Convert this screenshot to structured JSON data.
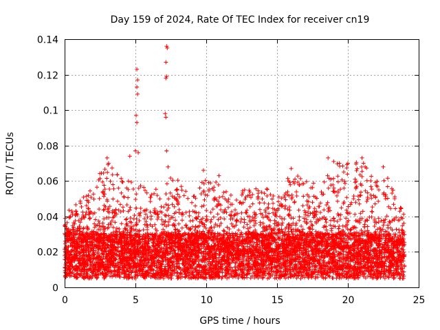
{
  "chart_data": {
    "type": "scatter",
    "title": "Day 159 of 2024, Rate Of TEC Index for receiver cn19",
    "xlabel": "GPS time / hours",
    "ylabel": "ROTI / TECUs",
    "xlim": [
      0,
      25
    ],
    "ylim": [
      0,
      0.14
    ],
    "xticks": [
      0,
      5,
      10,
      15,
      20,
      25
    ],
    "xtick_labels": [
      "0",
      "5",
      "10",
      "15",
      "20",
      "25"
    ],
    "yticks": [
      0,
      0.02,
      0.04,
      0.06,
      0.08,
      0.1,
      0.12,
      0.14
    ],
    "ytick_labels": [
      "0",
      "0.02",
      "0.04",
      "0.06",
      "0.08",
      "0.1",
      "0.12",
      "0.14"
    ],
    "grid": true,
    "marker": "plus",
    "color": "#ff0000",
    "data_range_hours": [
      0,
      24
    ],
    "baseline_band": [
      0.005,
      0.03
    ],
    "notable_points": [
      {
        "x": 5.1,
        "y": 0.123
      },
      {
        "x": 5.15,
        "y": 0.117
      },
      {
        "x": 5.1,
        "y": 0.113
      },
      {
        "x": 5.15,
        "y": 0.109
      },
      {
        "x": 5.05,
        "y": 0.097
      },
      {
        "x": 5.1,
        "y": 0.093
      },
      {
        "x": 5.0,
        "y": 0.077
      },
      {
        "x": 5.2,
        "y": 0.076
      },
      {
        "x": 4.6,
        "y": 0.074
      },
      {
        "x": 7.2,
        "y": 0.136
      },
      {
        "x": 7.25,
        "y": 0.135
      },
      {
        "x": 7.15,
        "y": 0.127
      },
      {
        "x": 7.2,
        "y": 0.119
      },
      {
        "x": 7.15,
        "y": 0.118
      },
      {
        "x": 7.1,
        "y": 0.098
      },
      {
        "x": 7.15,
        "y": 0.096
      },
      {
        "x": 7.2,
        "y": 0.077
      },
      {
        "x": 7.3,
        "y": 0.068
      },
      {
        "x": 3.0,
        "y": 0.073
      },
      {
        "x": 3.1,
        "y": 0.07
      },
      {
        "x": 9.8,
        "y": 0.066
      },
      {
        "x": 10.9,
        "y": 0.063
      },
      {
        "x": 16.0,
        "y": 0.067
      },
      {
        "x": 18.6,
        "y": 0.073
      },
      {
        "x": 19.0,
        "y": 0.071
      },
      {
        "x": 19.4,
        "y": 0.07
      },
      {
        "x": 20.0,
        "y": 0.07
      },
      {
        "x": 21.0,
        "y": 0.073
      },
      {
        "x": 21.1,
        "y": 0.07
      },
      {
        "x": 22.5,
        "y": 0.068
      }
    ],
    "peak_envelope": {
      "hours": [
        0,
        1,
        2,
        3,
        4,
        5,
        6,
        7,
        8,
        9,
        10,
        11,
        12,
        13,
        14,
        15,
        16,
        17,
        18,
        19,
        20,
        21,
        22,
        23,
        24
      ],
      "roti": [
        0.042,
        0.048,
        0.058,
        0.072,
        0.062,
        0.06,
        0.055,
        0.063,
        0.062,
        0.05,
        0.065,
        0.062,
        0.05,
        0.058,
        0.058,
        0.05,
        0.066,
        0.06,
        0.058,
        0.072,
        0.07,
        0.072,
        0.06,
        0.062,
        0.04
      ]
    }
  }
}
